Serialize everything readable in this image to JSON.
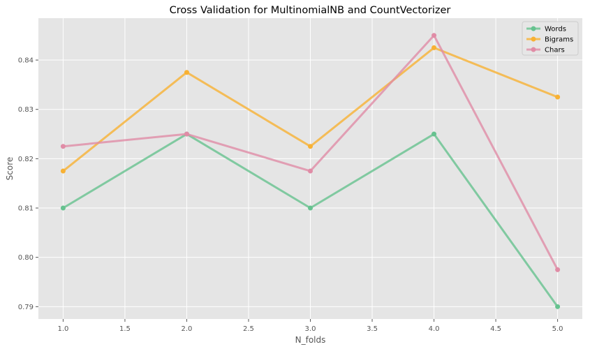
{
  "chart_data": {
    "type": "line",
    "title": "Cross Validation for MultinomialNB and CountVectorizer",
    "xlabel": "N_folds",
    "ylabel": "Score",
    "xlim": [
      0.8,
      5.2
    ],
    "ylim": [
      0.7875,
      0.8485
    ],
    "x_ticks": [
      1.0,
      1.5,
      2.0,
      2.5,
      3.0,
      3.5,
      4.0,
      4.5,
      5.0
    ],
    "x_tick_labels": [
      "1.0",
      "1.5",
      "2.0",
      "2.5",
      "3.0",
      "3.5",
      "4.0",
      "4.5",
      "5.0"
    ],
    "y_ticks": [
      0.79,
      0.8,
      0.81,
      0.82,
      0.83,
      0.84
    ],
    "y_tick_labels": [
      "0.79",
      "0.80",
      "0.81",
      "0.82",
      "0.83",
      "0.84"
    ],
    "grid": true,
    "legend_position": "top-right",
    "x": [
      1,
      2,
      3,
      4,
      5
    ],
    "series": [
      {
        "name": "Words",
        "color": "#66c28f",
        "values": [
          0.81,
          0.825,
          0.81,
          0.825,
          0.79
        ]
      },
      {
        "name": "Bigrams",
        "color": "#f8b133",
        "values": [
          0.8175,
          0.8375,
          0.8225,
          0.8425,
          0.8325
        ]
      },
      {
        "name": "Chars",
        "color": "#e08ca6",
        "values": [
          0.8225,
          0.825,
          0.8175,
          0.845,
          0.7975
        ]
      }
    ]
  }
}
